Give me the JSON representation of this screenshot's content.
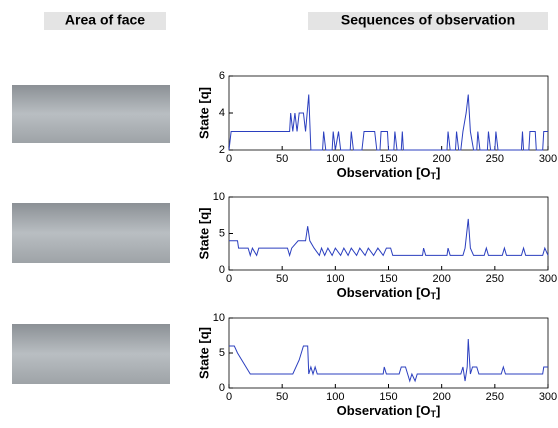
{
  "headers": {
    "face": "Area of face",
    "sequences": "Sequences of observation"
  },
  "chart_data": [
    {
      "type": "line",
      "ylabel": "State [q]",
      "xlabel": [
        "Observation [O",
        "T",
        "]"
      ],
      "xlim": [
        0,
        300
      ],
      "xticks": [
        0,
        50,
        100,
        150,
        200,
        250,
        300
      ],
      "ylim": [
        2,
        6
      ],
      "yticks": [
        2,
        4,
        6
      ],
      "series": [
        {
          "color": "#2b3fbf",
          "x": [
            0,
            2,
            57,
            58,
            60,
            62,
            64,
            66,
            70,
            72,
            75,
            77,
            88,
            89,
            91,
            97,
            98,
            100,
            103,
            105,
            114,
            115,
            117,
            125,
            127,
            137,
            139,
            142,
            143,
            149,
            150,
            155,
            156,
            158,
            162,
            163,
            164,
            205,
            206,
            208,
            213,
            214,
            216,
            218,
            220,
            223,
            225,
            227,
            230,
            233,
            234,
            236,
            243,
            244,
            246,
            250,
            251,
            253,
            275,
            276,
            277,
            282,
            283,
            288,
            289,
            295,
            296,
            300
          ],
          "values": [
            2,
            3,
            3,
            4,
            3,
            4,
            3,
            4,
            4,
            3,
            5,
            2,
            2,
            3,
            2,
            2,
            3,
            2,
            3,
            2,
            2,
            3,
            2,
            2,
            3,
            3,
            2,
            2,
            3,
            3,
            2,
            2,
            3,
            2,
            2,
            3,
            2,
            2,
            3,
            2,
            2,
            3,
            2,
            2,
            3,
            4,
            5,
            3,
            2,
            2,
            3,
            2,
            2,
            3,
            2,
            2,
            3,
            2,
            2,
            3,
            2,
            2,
            3,
            3,
            2,
            2,
            3,
            3
          ]
        }
      ]
    },
    {
      "type": "line",
      "ylabel": "State [q]",
      "xlabel": [
        "Observation [O",
        "T",
        "]"
      ],
      "xlim": [
        0,
        300
      ],
      "xticks": [
        0,
        50,
        100,
        150,
        200,
        250,
        300
      ],
      "ylim": [
        0,
        10
      ],
      "yticks": [
        0,
        5,
        10
      ],
      "series": [
        {
          "color": "#2b3fbf",
          "x": [
            0,
            8,
            9,
            18,
            20,
            22,
            26,
            28,
            55,
            57,
            59,
            65,
            72,
            74,
            76,
            80,
            85,
            87,
            90,
            93,
            97,
            100,
            105,
            108,
            112,
            115,
            120,
            123,
            128,
            131,
            136,
            140,
            145,
            148,
            152,
            154,
            182,
            183,
            185,
            205,
            206,
            208,
            220,
            222,
            225,
            227,
            230,
            240,
            242,
            244,
            257,
            259,
            261,
            275,
            277,
            279,
            295,
            297,
            300
          ],
          "values": [
            4,
            4,
            3,
            3,
            2,
            3,
            2,
            3,
            3,
            2,
            3,
            4,
            4,
            6,
            4,
            3,
            2,
            3,
            2,
            3,
            2,
            3,
            2,
            3,
            2,
            3,
            2,
            3,
            2,
            3,
            2,
            3,
            2,
            3,
            3,
            2,
            2,
            3,
            2,
            2,
            3,
            2,
            2,
            3,
            7,
            3,
            2,
            2,
            3,
            2,
            2,
            3,
            2,
            2,
            3,
            2,
            2,
            3,
            2
          ]
        }
      ]
    },
    {
      "type": "line",
      "ylabel": "State [q]",
      "xlabel": [
        "Observation [O",
        "T",
        "]"
      ],
      "xlim": [
        0,
        300
      ],
      "xticks": [
        0,
        50,
        100,
        150,
        200,
        250,
        300
      ],
      "ylim": [
        0,
        10
      ],
      "yticks": [
        0,
        5,
        10
      ],
      "series": [
        {
          "color": "#2b3fbf",
          "x": [
            0,
            5,
            8,
            12,
            16,
            20,
            60,
            66,
            70,
            74,
            75,
            77,
            79,
            81,
            83,
            145,
            146,
            148,
            160,
            162,
            166,
            168,
            170,
            172,
            175,
            177,
            218,
            220,
            222,
            224,
            225,
            227,
            229,
            233,
            235,
            256,
            258,
            260,
            295,
            296,
            300
          ],
          "values": [
            6,
            6,
            5,
            4,
            3,
            2,
            2,
            4,
            6,
            6,
            2,
            3,
            2,
            3,
            2,
            2,
            3,
            2,
            2,
            3,
            3,
            2,
            1,
            2,
            1,
            2,
            2,
            3,
            1,
            3,
            7,
            2,
            3,
            3,
            2,
            2,
            3,
            2,
            2,
            3,
            3
          ]
        }
      ]
    }
  ]
}
